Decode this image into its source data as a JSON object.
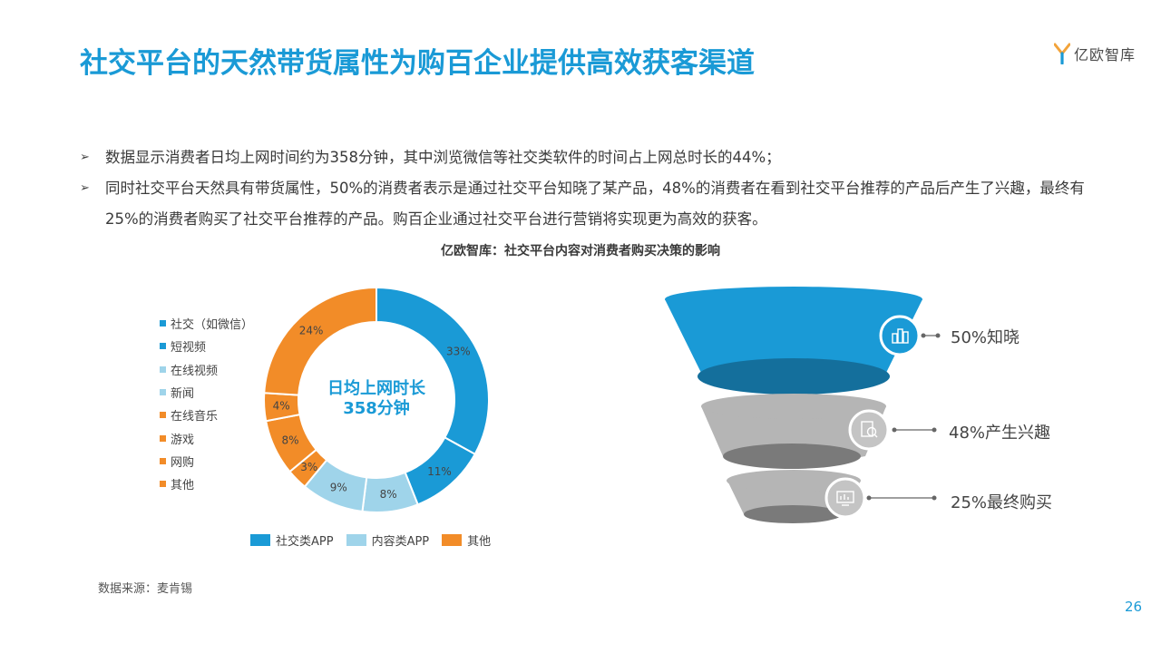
{
  "header": {
    "title": "社交平台的天然带货属性为购百企业提供高效获客渠道",
    "logo_text": "亿欧智库"
  },
  "bullets": [
    {
      "marker": "➢",
      "text": "数据显示消费者日均上网时间约为358分钟，其中浏览微信等社交类软件的时间占上网总时长的44%；"
    },
    {
      "marker": "➢",
      "text": "同时社交平台天然具有带货属性，50%的消费者表示是通过社交平台知晓了某产品，48%的消费者在看到社交平台推荐的产品后产生了兴趣，最终有25%的消费者购买了社交平台推荐的产品。购百企业通过社交平台进行营销将实现更为高效的获客。"
    }
  ],
  "chart_title": "亿欧智库：社交平台内容对消费者购买决策的影响",
  "colors": {
    "blue": "#1a9ad6",
    "light_blue": "#9fd4ea",
    "orange": "#f28c28",
    "gray": "#b5b5b5",
    "dark_gray": "#7a7a7a"
  },
  "chart_data": [
    {
      "type": "pie",
      "variant": "donut",
      "center_text": [
        "日均上网时长",
        "358分钟"
      ],
      "slices": [
        {
          "label": "社交（如微信）",
          "value": 33,
          "display": "33%",
          "group": "社交类APP",
          "color": "#1a9ad6"
        },
        {
          "label": "短视频",
          "value": 11,
          "display": "11%",
          "group": "社交类APP",
          "color": "#1a9ad6"
        },
        {
          "label": "在线视频",
          "value": 8,
          "display": "8%",
          "group": "内容类APP",
          "color": "#9fd4ea"
        },
        {
          "label": "新闻",
          "value": 9,
          "display": "9%",
          "group": "内容类APP",
          "color": "#9fd4ea"
        },
        {
          "label": "在线音乐",
          "value": 3,
          "display": "3%",
          "group": "其他",
          "color": "#f28c28"
        },
        {
          "label": "游戏",
          "value": 8,
          "display": "8%",
          "group": "其他",
          "color": "#f28c28"
        },
        {
          "label": "网购",
          "value": 4,
          "display": "4%",
          "group": "其他",
          "color": "#f28c28"
        },
        {
          "label": "其他",
          "value": 24,
          "display": "24%",
          "group": "其他",
          "color": "#f28c28"
        }
      ],
      "legend_left": [
        "社交（如微信）",
        "短视频",
        "在线视频",
        "新闻",
        "在线音乐",
        "游戏",
        "网购",
        "其他"
      ],
      "legend_left_colors": [
        "#1a9ad6",
        "#1a9ad6",
        "#9fd4ea",
        "#9fd4ea",
        "#f28c28",
        "#f28c28",
        "#f28c28",
        "#f28c28"
      ],
      "legend_bottom": [
        {
          "label": "社交类APP",
          "color": "#1a9ad6"
        },
        {
          "label": "内容类APP",
          "color": "#9fd4ea"
        },
        {
          "label": "其他",
          "color": "#f28c28"
        }
      ]
    },
    {
      "type": "bar",
      "variant": "funnel",
      "stages": [
        {
          "label": "50%知晓",
          "value": 50,
          "color": "#1a9ad6",
          "icon": "building-chart-icon"
        },
        {
          "label": "48%产生兴趣",
          "value": 48,
          "color": "#b5b5b5",
          "icon": "magnifier-document-icon"
        },
        {
          "label": "25%最终购买",
          "value": 25,
          "color": "#b5b5b5",
          "icon": "screen-chart-icon"
        }
      ]
    }
  ],
  "footer": {
    "source": "数据来源：麦肯锡",
    "page_number": "26"
  }
}
